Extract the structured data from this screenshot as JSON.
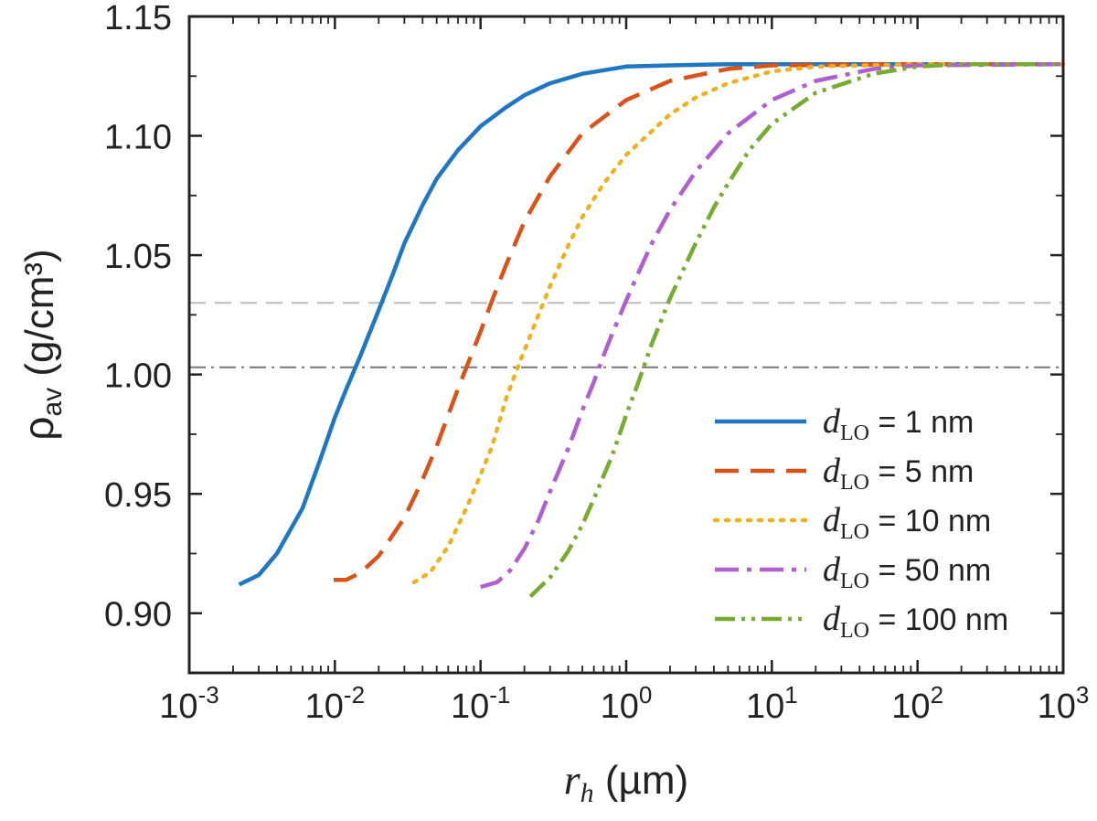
{
  "chart_data": {
    "type": "line",
    "x_scale": "log",
    "xlim": [
      0.001,
      1000
    ],
    "ylim": [
      0.875,
      1.15
    ],
    "x_ticks": [
      {
        "base": "10",
        "exp": "-3"
      },
      {
        "base": "10",
        "exp": "-2"
      },
      {
        "base": "10",
        "exp": "-1"
      },
      {
        "base": "10",
        "exp": "0"
      },
      {
        "base": "10",
        "exp": "1"
      },
      {
        "base": "10",
        "exp": "2"
      },
      {
        "base": "10",
        "exp": "3"
      }
    ],
    "y_ticks": [
      "0.90",
      "0.95",
      "1.00",
      "1.05",
      "1.10",
      "1.15"
    ],
    "xlabel": {
      "symbol": "r",
      "sub": "h",
      "unit": " (µm)"
    },
    "ylabel": {
      "symbol": "ρ",
      "sub": "av",
      "unit": " (g/cm³)"
    },
    "reference_lines": [
      {
        "y": 1.03,
        "style": "dashed",
        "color": "#bdbdbd"
      },
      {
        "y": 1.003,
        "style": "dashdot",
        "color": "#777777"
      }
    ],
    "legend_position": "lower-right",
    "series": [
      {
        "name": "dLO = 1 nm",
        "legend": {
          "symbol": "d",
          "sub": "LO",
          "rest": " = 1 nm"
        },
        "color": "#1f77c4",
        "style": "solid",
        "x": [
          0.0022,
          0.003,
          0.004,
          0.006,
          0.008,
          0.01,
          0.012,
          0.015,
          0.02,
          0.025,
          0.03,
          0.04,
          0.05,
          0.07,
          0.1,
          0.15,
          0.2,
          0.3,
          0.5,
          1,
          2,
          5,
          10,
          100,
          1000
        ],
        "y": [
          0.912,
          0.916,
          0.925,
          0.944,
          0.965,
          0.982,
          0.994,
          1.008,
          1.027,
          1.042,
          1.055,
          1.071,
          1.082,
          1.094,
          1.104,
          1.112,
          1.117,
          1.122,
          1.126,
          1.129,
          1.1295,
          1.13,
          1.13,
          1.13,
          1.13
        ]
      },
      {
        "name": "dLO = 5 nm",
        "legend": {
          "symbol": "d",
          "sub": "LO",
          "rest": " = 5 nm"
        },
        "color": "#d95319",
        "style": "dashed",
        "x": [
          0.0098,
          0.012,
          0.015,
          0.02,
          0.03,
          0.04,
          0.05,
          0.06,
          0.07,
          0.08,
          0.09,
          0.1,
          0.12,
          0.15,
          0.2,
          0.3,
          0.5,
          1,
          2,
          5,
          10,
          100,
          1000
        ],
        "y": [
          0.914,
          0.914,
          0.917,
          0.924,
          0.94,
          0.956,
          0.97,
          0.983,
          0.994,
          1.003,
          1.011,
          1.018,
          1.031,
          1.046,
          1.064,
          1.083,
          1.101,
          1.115,
          1.123,
          1.128,
          1.1295,
          1.13,
          1.13
        ]
      },
      {
        "name": "dLO = 10 nm",
        "legend": {
          "symbol": "d",
          "sub": "LO",
          "rest": " = 10 nm"
        },
        "color": "#edb120",
        "style": "dotted",
        "x": [
          0.035,
          0.045,
          0.06,
          0.08,
          0.1,
          0.12,
          0.15,
          0.18,
          0.2,
          0.25,
          0.3,
          0.4,
          0.5,
          0.7,
          1,
          2,
          3,
          5,
          10,
          20,
          100,
          1000
        ],
        "y": [
          0.913,
          0.917,
          0.928,
          0.944,
          0.958,
          0.97,
          0.99,
          1.003,
          1.01,
          1.025,
          1.037,
          1.054,
          1.066,
          1.08,
          1.092,
          1.109,
          1.116,
          1.122,
          1.127,
          1.129,
          1.13,
          1.13
        ]
      },
      {
        "name": "dLO = 50 nm",
        "legend": {
          "symbol": "d",
          "sub": "LO",
          "rest": " = 50 nm"
        },
        "color": "#b05fd0",
        "style": "dashdot",
        "x": [
          0.1,
          0.13,
          0.16,
          0.2,
          0.25,
          0.3,
          0.4,
          0.5,
          0.6,
          0.7,
          0.8,
          1,
          1.2,
          1.5,
          2,
          3,
          5,
          10,
          20,
          50,
          100,
          1000
        ],
        "y": [
          0.911,
          0.913,
          0.918,
          0.927,
          0.939,
          0.951,
          0.969,
          0.985,
          0.997,
          1.008,
          1.017,
          1.031,
          1.042,
          1.055,
          1.069,
          1.085,
          1.101,
          1.115,
          1.123,
          1.128,
          1.1295,
          1.13
        ]
      },
      {
        "name": "dLO = 100 nm",
        "legend": {
          "symbol": "d",
          "sub": "LO",
          "rest": " = 100 nm"
        },
        "color": "#77ac30",
        "style": "dashdotdot",
        "x": [
          0.22,
          0.3,
          0.4,
          0.5,
          0.6,
          0.8,
          1,
          1.2,
          1.5,
          2,
          3,
          4,
          5,
          7,
          10,
          20,
          50,
          100,
          200,
          1000
        ],
        "y": [
          0.907,
          0.915,
          0.926,
          0.937,
          0.948,
          0.966,
          0.983,
          0.996,
          1.013,
          1.032,
          1.055,
          1.07,
          1.08,
          1.094,
          1.105,
          1.118,
          1.126,
          1.129,
          1.13,
          1.13
        ]
      }
    ]
  }
}
